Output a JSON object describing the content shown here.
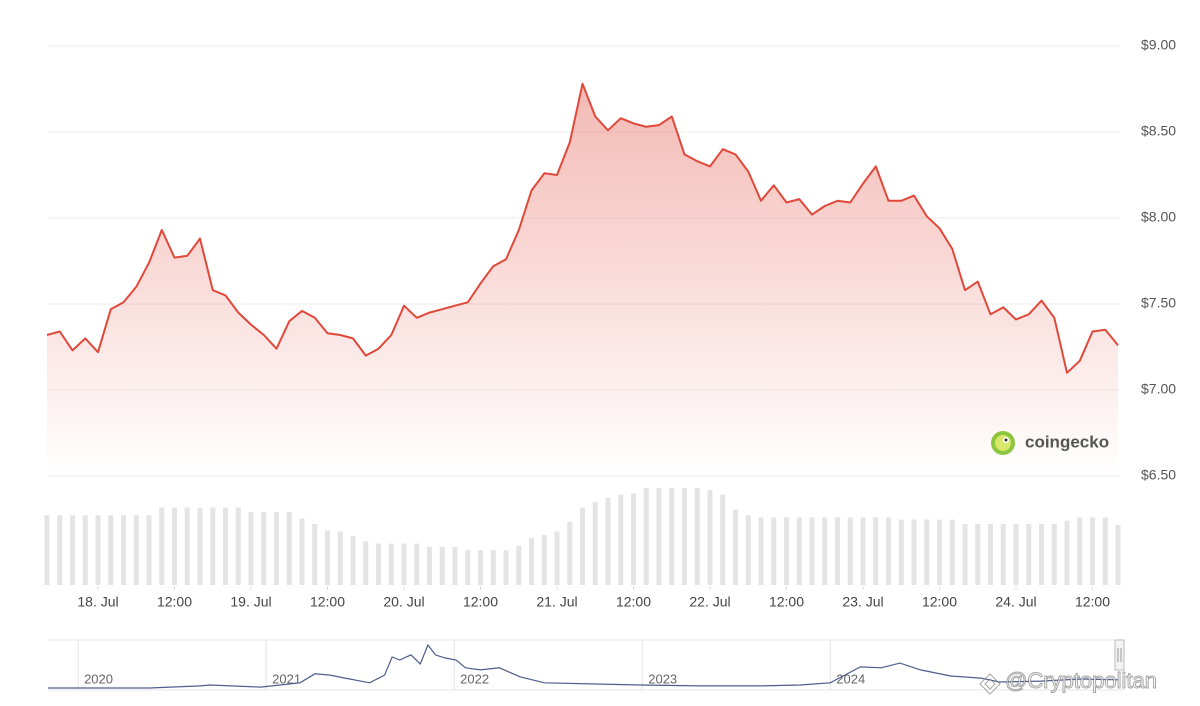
{
  "chart_data": {
    "type": "line",
    "x": [
      "17. Jul 16:00",
      "17. Jul 18:00",
      "17. Jul 20:00",
      "17. Jul 22:00",
      "18. Jul 00:00",
      "18. Jul 02:00",
      "18. Jul 04:00",
      "18. Jul 06:00",
      "18. Jul 08:00",
      "18. Jul 10:00",
      "18. Jul 12:00",
      "18. Jul 14:00",
      "18. Jul 16:00",
      "18. Jul 18:00",
      "18. Jul 20:00",
      "18. Jul 22:00",
      "19. Jul 00:00",
      "19. Jul 02:00",
      "19. Jul 04:00",
      "19. Jul 06:00",
      "19. Jul 08:00",
      "19. Jul 10:00",
      "19. Jul 12:00",
      "19. Jul 14:00",
      "19. Jul 16:00",
      "19. Jul 18:00",
      "19. Jul 20:00",
      "19. Jul 22:00",
      "20. Jul 00:00",
      "20. Jul 02:00",
      "20. Jul 04:00",
      "20. Jul 06:00",
      "20. Jul 08:00",
      "20. Jul 10:00",
      "20. Jul 12:00",
      "20. Jul 14:00",
      "20. Jul 16:00",
      "20. Jul 18:00",
      "20. Jul 20:00",
      "20. Jul 22:00",
      "21. Jul 00:00",
      "21. Jul 02:00",
      "21. Jul 04:00",
      "21. Jul 06:00",
      "21. Jul 08:00",
      "21. Jul 10:00",
      "21. Jul 12:00",
      "21. Jul 14:00",
      "21. Jul 16:00",
      "21. Jul 18:00",
      "21. Jul 20:00",
      "21. Jul 22:00",
      "22. Jul 00:00",
      "22. Jul 02:00",
      "22. Jul 04:00",
      "22. Jul 06:00",
      "22. Jul 08:00",
      "22. Jul 10:00",
      "22. Jul 12:00",
      "22. Jul 14:00",
      "22. Jul 16:00",
      "22. Jul 18:00",
      "22. Jul 20:00",
      "22. Jul 22:00",
      "23. Jul 00:00",
      "23. Jul 02:00",
      "23. Jul 04:00",
      "23. Jul 06:00",
      "23. Jul 08:00",
      "23. Jul 10:00",
      "23. Jul 12:00",
      "23. Jul 14:00",
      "23. Jul 16:00",
      "23. Jul 18:00",
      "23. Jul 20:00",
      "23. Jul 22:00",
      "24. Jul 00:00",
      "24. Jul 02:00",
      "24. Jul 04:00",
      "24. Jul 06:00",
      "24. Jul 08:00",
      "24. Jul 10:00",
      "24. Jul 12:00",
      "24. Jul 14:00",
      "24. Jul 16:00"
    ],
    "values": [
      7.32,
      7.34,
      7.23,
      7.3,
      7.22,
      7.47,
      7.51,
      7.6,
      7.74,
      7.93,
      7.77,
      7.78,
      7.88,
      7.58,
      7.55,
      7.45,
      7.38,
      7.32,
      7.24,
      7.4,
      7.46,
      7.42,
      7.33,
      7.32,
      7.3,
      7.2,
      7.24,
      7.32,
      7.49,
      7.42,
      7.45,
      7.47,
      7.49,
      7.51,
      7.62,
      7.72,
      7.76,
      7.93,
      8.16,
      8.26,
      8.25,
      8.44,
      8.78,
      8.59,
      8.51,
      8.58,
      8.55,
      8.53,
      8.54,
      8.59,
      8.37,
      8.33,
      8.3,
      8.4,
      8.37,
      8.27,
      8.1,
      8.19,
      8.09,
      8.11,
      8.02,
      8.07,
      8.1,
      8.09,
      8.2,
      8.3,
      8.1,
      8.1,
      8.13,
      8.01,
      7.94,
      7.82,
      7.58,
      7.63,
      7.44,
      7.48,
      7.41,
      7.44,
      7.52,
      7.42,
      7.1,
      7.17,
      7.34,
      7.35,
      7.26
    ],
    "color": "#e0483a",
    "xlim": [
      "17. Jul 16:00",
      "24. Jul 16:00"
    ],
    "xticks": [
      {
        "value": "18. Jul 00:00",
        "label": "18. Jul"
      },
      {
        "value": "18. Jul 12:00",
        "label": "12:00"
      },
      {
        "value": "19. Jul 00:00",
        "label": "19. Jul"
      },
      {
        "value": "19. Jul 12:00",
        "label": "12:00"
      },
      {
        "value": "20. Jul 00:00",
        "label": "20. Jul"
      },
      {
        "value": "20. Jul 12:00",
        "label": "12:00"
      },
      {
        "value": "21. Jul 00:00",
        "label": "21. Jul"
      },
      {
        "value": "21. Jul 12:00",
        "label": "12:00"
      },
      {
        "value": "22. Jul 00:00",
        "label": "22. Jul"
      },
      {
        "value": "22. Jul 12:00",
        "label": "12:00"
      },
      {
        "value": "23. Jul 00:00",
        "label": "23. Jul"
      },
      {
        "value": "23. Jul 12:00",
        "label": "12:00"
      },
      {
        "value": "24. Jul 00:00",
        "label": "24. Jul"
      },
      {
        "value": "24. Jul 12:00",
        "label": "12:00"
      }
    ],
    "ylim": [
      6.5,
      9
    ],
    "yticks": [
      {
        "value": 6.5,
        "label": "$6.50"
      },
      {
        "value": 7,
        "label": "$7.00"
      },
      {
        "value": 7.5,
        "label": "$7.50"
      },
      {
        "value": 8,
        "label": "$8.00"
      },
      {
        "value": 8.5,
        "label": "$8.50"
      },
      {
        "value": 9,
        "label": "$9.00"
      }
    ],
    "grid": true,
    "volume": {
      "values": [
        64,
        64,
        64,
        64,
        64,
        64,
        64,
        64,
        64,
        71,
        71,
        71,
        71,
        71,
        71,
        71,
        67,
        67,
        67,
        67,
        61,
        56,
        50,
        49,
        45,
        40,
        38,
        38,
        38,
        38,
        35,
        35,
        35,
        32,
        32,
        32,
        32,
        36,
        43,
        46,
        49,
        58,
        71,
        76,
        80,
        83,
        84,
        89,
        89,
        89,
        89,
        89,
        87,
        83,
        69,
        64,
        62,
        62,
        62,
        62,
        62,
        62,
        62,
        62,
        62,
        62,
        62,
        60,
        60,
        60,
        60,
        60,
        56,
        56,
        56,
        56,
        56,
        56,
        56,
        56,
        59,
        62,
        62,
        62,
        55
      ],
      "color": "#e4e4e4",
      "ylim": [
        0,
        100
      ]
    },
    "navigator": {
      "x": [
        2019.84,
        2020.38,
        2020.65,
        2020.7,
        2020.97,
        2021.18,
        2021.26,
        2021.34,
        2021.42,
        2021.55,
        2021.63,
        2021.67,
        2021.71,
        2021.77,
        2021.82,
        2021.86,
        2021.9,
        2021.95,
        2022.01,
        2022.06,
        2022.14,
        2022.24,
        2022.35,
        2022.48,
        2022.78,
        2022.99,
        2023.31,
        2023.63,
        2023.84,
        2024.0,
        2024.16,
        2024.27,
        2024.37,
        2024.48,
        2024.64,
        2024.8,
        2024.9,
        2025.12,
        2025.33,
        2025.53
      ],
      "values": [
        0,
        0,
        5,
        7,
        2,
        12,
        33,
        30,
        23,
        12,
        30,
        72,
        65,
        77,
        56,
        100,
        77,
        70,
        65,
        47,
        42,
        47,
        26,
        12,
        9,
        7,
        5,
        5,
        7,
        12,
        49,
        47,
        58,
        42,
        28,
        23,
        14,
        16,
        21,
        19
      ],
      "color": "#4f5d8c",
      "xlim": [
        2019.84,
        2025.53
      ],
      "ylim": [
        0,
        100
      ],
      "xticks": [
        2020,
        2021,
        2022,
        2023,
        2024
      ]
    },
    "logo_text": "coingecko",
    "watermark": "@Cryptopolitan"
  }
}
